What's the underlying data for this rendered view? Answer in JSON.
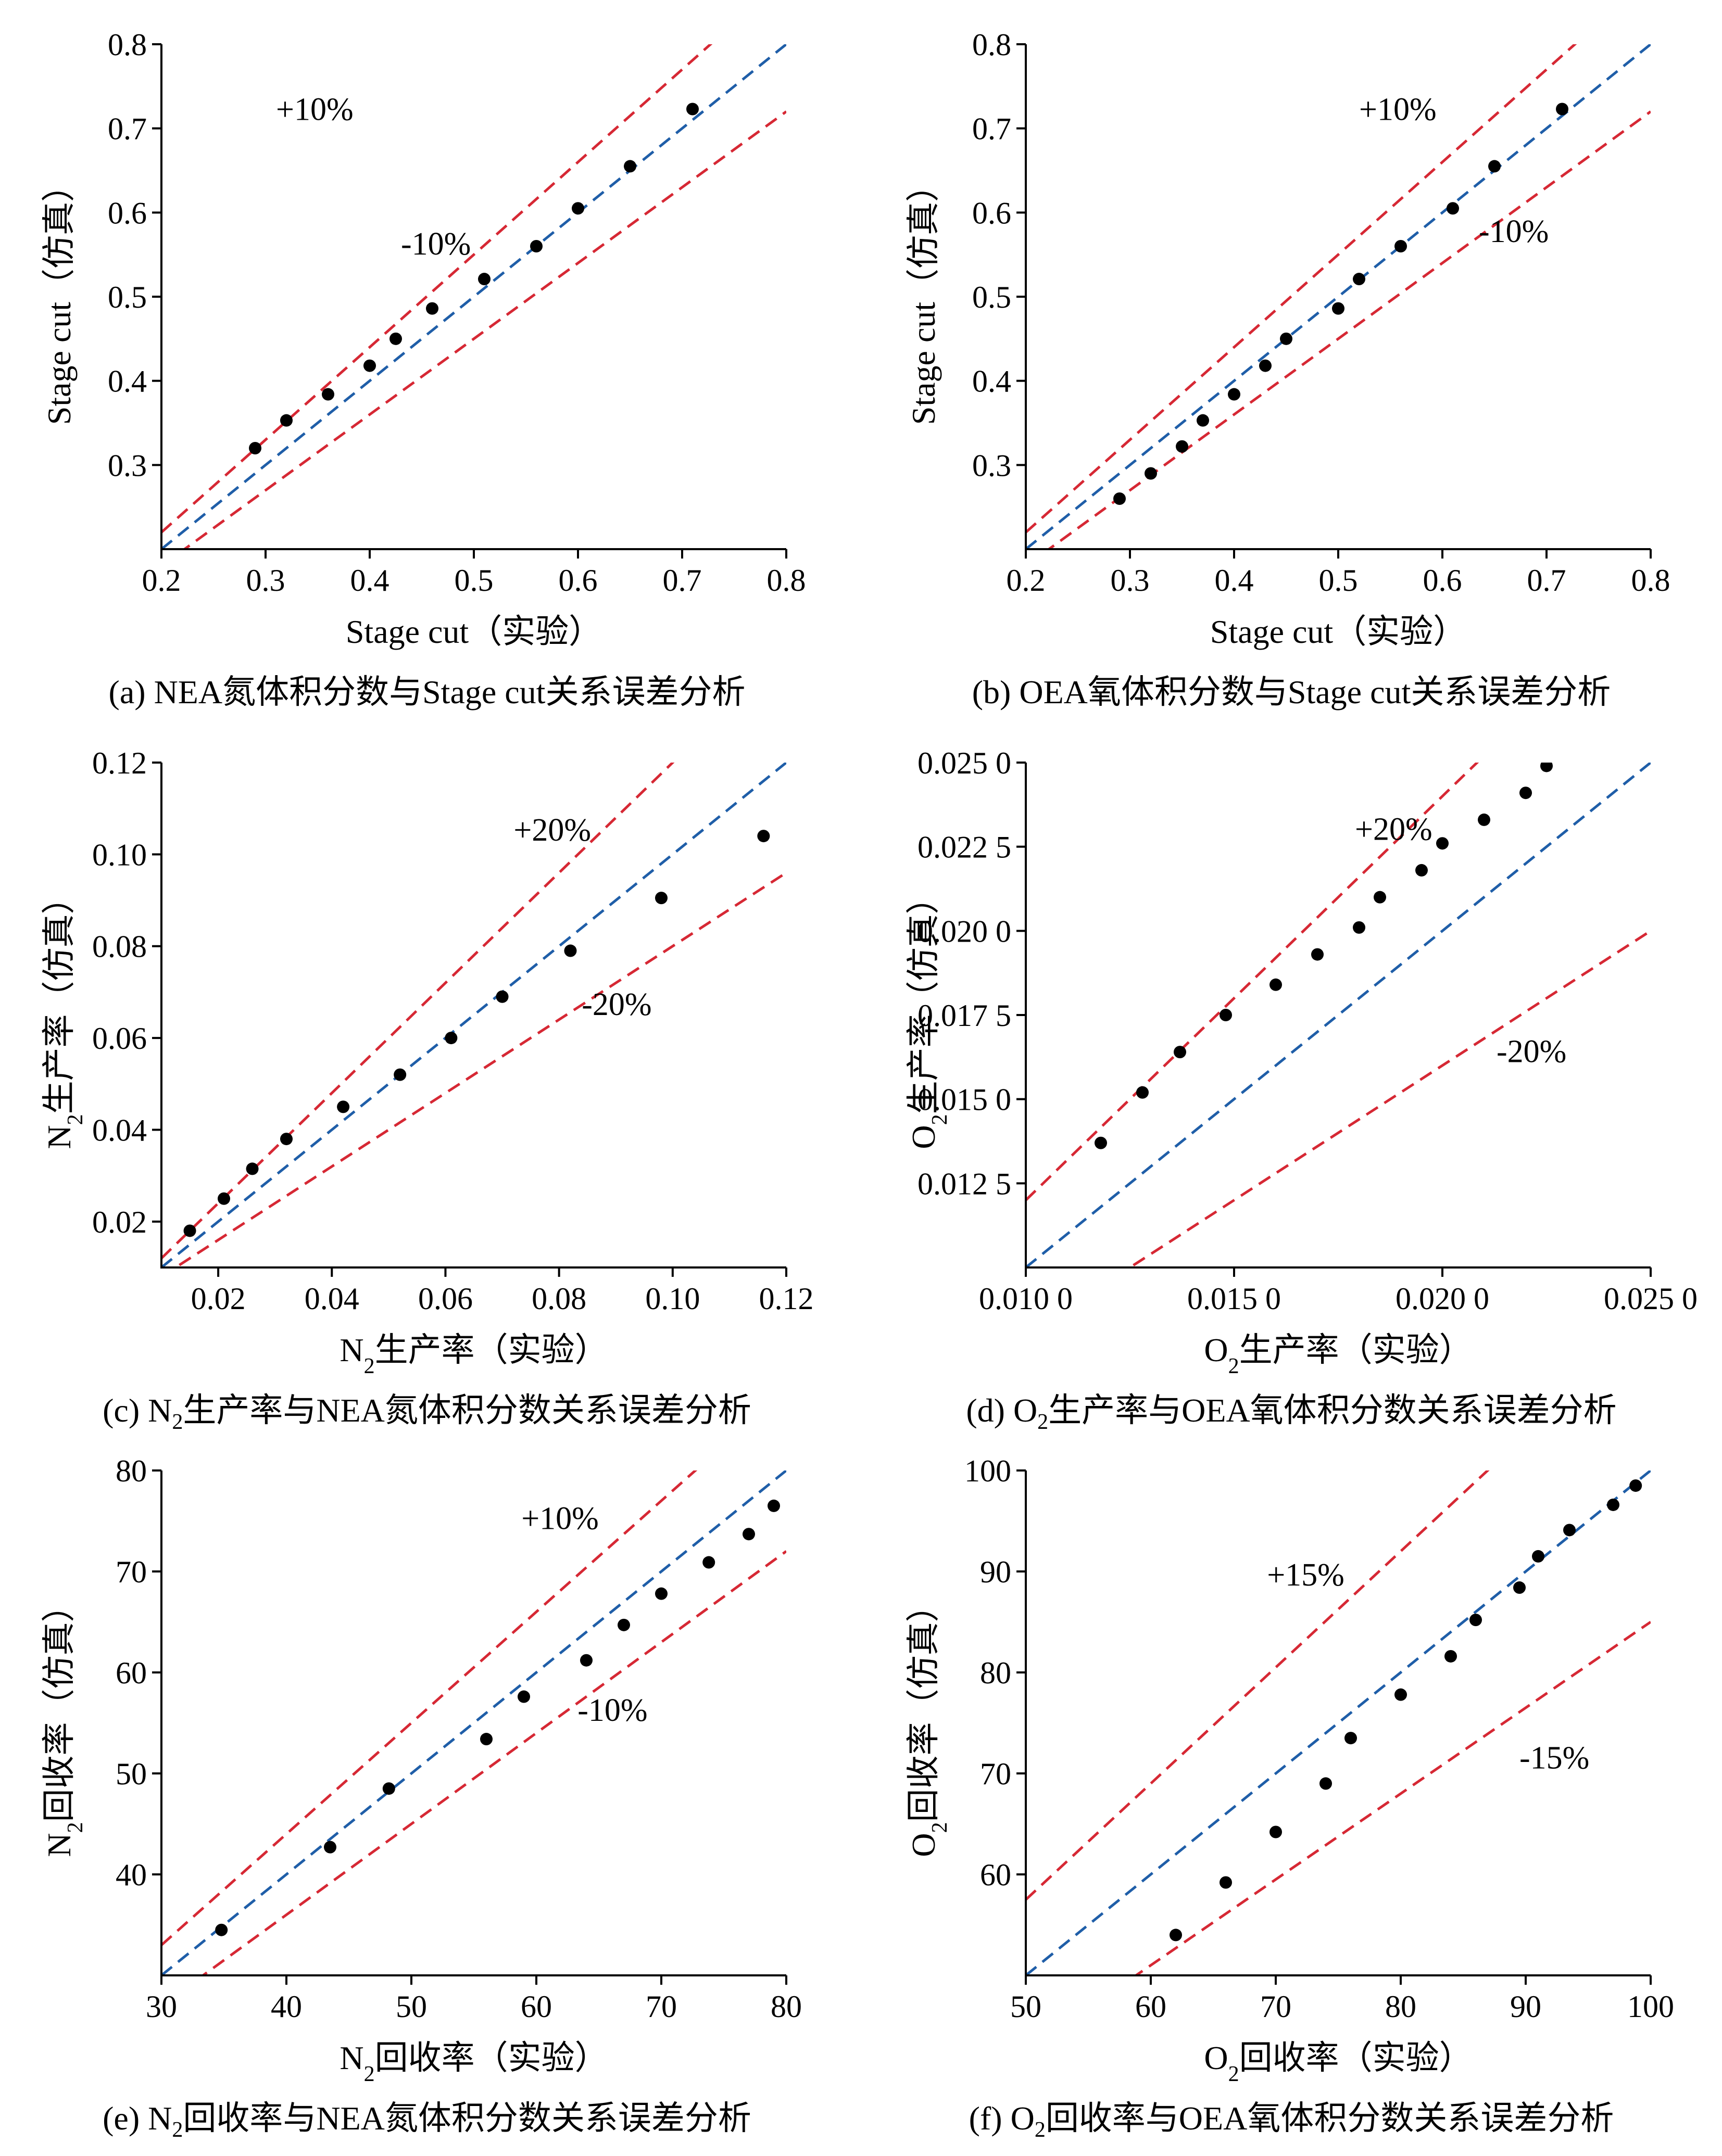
{
  "chart_data": [
    {
      "id": "a",
      "type": "scatter",
      "caption": {
        "pre": "(a) NEA氮体积分数与Stage cut关系误差分析",
        "sub": "",
        "post": ""
      },
      "xlabel": {
        "pre": "Stage cut（实验）",
        "sub": "",
        "post": ""
      },
      "ylabel": {
        "pre": "Stage cut（仿真）",
        "sub": "",
        "post": ""
      },
      "xlim": [
        0.2,
        0.8
      ],
      "ylim": [
        0.2,
        0.8
      ],
      "xticks": [
        0.2,
        0.3,
        0.4,
        0.5,
        0.6,
        0.7,
        0.8
      ],
      "xtick_labels": [
        "0.2",
        "0.3",
        "0.4",
        "0.5",
        "0.6",
        "0.7",
        "0.8"
      ],
      "yticks": [
        0.3,
        0.4,
        0.5,
        0.6,
        0.7,
        0.8
      ],
      "ytick_labels": [
        "0.3",
        "0.4",
        "0.5",
        "0.6",
        "0.7",
        "0.8"
      ],
      "grid": false,
      "band": 0.1,
      "band_labels": [
        {
          "text": "+10%",
          "x": 0.31,
          "y": 0.71
        },
        {
          "text": "-10%",
          "x": 0.43,
          "y": 0.55
        }
      ],
      "series": [
        {
          "x": [
            0.29,
            0.32,
            0.36,
            0.4,
            0.425,
            0.46,
            0.51,
            0.56,
            0.6,
            0.65,
            0.71
          ],
          "y": [
            0.32,
            0.353,
            0.384,
            0.418,
            0.45,
            0.486,
            0.521,
            0.56,
            0.605,
            0.655,
            0.723
          ]
        }
      ]
    },
    {
      "id": "b",
      "type": "scatter",
      "caption": {
        "pre": "(b) OEA氧体积分数与Stage cut关系误差分析",
        "sub": "",
        "post": ""
      },
      "xlabel": {
        "pre": "Stage cut（实验）",
        "sub": "",
        "post": ""
      },
      "ylabel": {
        "pre": "Stage cut（仿真）",
        "sub": "",
        "post": ""
      },
      "xlim": [
        0.2,
        0.8
      ],
      "ylim": [
        0.2,
        0.8
      ],
      "xticks": [
        0.2,
        0.3,
        0.4,
        0.5,
        0.6,
        0.7,
        0.8
      ],
      "xtick_labels": [
        "0.2",
        "0.3",
        "0.4",
        "0.5",
        "0.6",
        "0.7",
        "0.8"
      ],
      "yticks": [
        0.3,
        0.4,
        0.5,
        0.6,
        0.7,
        0.8
      ],
      "ytick_labels": [
        "0.3",
        "0.4",
        "0.5",
        "0.6",
        "0.7",
        "0.8"
      ],
      "grid": false,
      "band": 0.1,
      "band_labels": [
        {
          "text": "+10%",
          "x": 0.52,
          "y": 0.71
        },
        {
          "text": "-10%",
          "x": 0.635,
          "y": 0.565
        }
      ],
      "series": [
        {
          "x": [
            0.29,
            0.32,
            0.35,
            0.37,
            0.4,
            0.43,
            0.45,
            0.5,
            0.52,
            0.56,
            0.61,
            0.65,
            0.715
          ],
          "y": [
            0.26,
            0.29,
            0.322,
            0.353,
            0.384,
            0.418,
            0.45,
            0.486,
            0.521,
            0.56,
            0.605,
            0.655,
            0.723
          ]
        }
      ]
    },
    {
      "id": "c",
      "type": "scatter",
      "caption": {
        "pre": "(c) N",
        "sub": "2",
        "post": "生产率与NEA氮体积分数关系误差分析"
      },
      "xlabel": {
        "pre": "N",
        "sub": "2",
        "post": "生产率（实验）"
      },
      "ylabel": {
        "pre": "N",
        "sub": "2",
        "post": "生产率（仿真）"
      },
      "xlim": [
        0.01,
        0.12
      ],
      "ylim": [
        0.01,
        0.12
      ],
      "xticks": [
        0.02,
        0.04,
        0.06,
        0.08,
        0.1,
        0.12
      ],
      "xtick_labels": [
        "0.02",
        "0.04",
        "0.06",
        "0.08",
        "0.10",
        "0.12"
      ],
      "yticks": [
        0.02,
        0.04,
        0.06,
        0.08,
        0.1,
        0.12
      ],
      "ytick_labels": [
        "0.02",
        "0.04",
        "0.06",
        "0.08",
        "0.10",
        "0.12"
      ],
      "grid": false,
      "band": 0.2,
      "band_labels": [
        {
          "text": "+20%",
          "x": 0.072,
          "y": 0.103
        },
        {
          "text": "-20%",
          "x": 0.084,
          "y": 0.065
        }
      ],
      "series": [
        {
          "x": [
            0.015,
            0.021,
            0.026,
            0.032,
            0.042,
            0.052,
            0.061,
            0.07,
            0.082,
            0.098,
            0.116
          ],
          "y": [
            0.018,
            0.025,
            0.0315,
            0.038,
            0.045,
            0.052,
            0.06,
            0.069,
            0.079,
            0.0905,
            0.104
          ]
        }
      ]
    },
    {
      "id": "d",
      "type": "scatter",
      "caption": {
        "pre": "(d) O",
        "sub": "2",
        "post": "生产率与OEA氧体积分数关系误差分析"
      },
      "xlabel": {
        "pre": "O",
        "sub": "2",
        "post": "生产率（实验）"
      },
      "ylabel": {
        "pre": "O",
        "sub": "2",
        "post": "生产率（仿真）"
      },
      "xlim": [
        0.01,
        0.025
      ],
      "ylim": [
        0.01,
        0.025
      ],
      "xticks": [
        0.01,
        0.015,
        0.02,
        0.025
      ],
      "xtick_labels": [
        "0.010 0",
        "0.015 0",
        "0.020 0",
        "0.025 0"
      ],
      "yticks": [
        0.0125,
        0.015,
        0.0175,
        0.02,
        0.0225,
        0.025
      ],
      "ytick_labels": [
        "0.012 5",
        "0.015 0",
        "0.017 5",
        "0.020 0",
        "0.022 5",
        "0.025 0"
      ],
      "grid": false,
      "band": 0.2,
      "band_labels": [
        {
          "text": "+20%",
          "x": 0.0179,
          "y": 0.0227
        },
        {
          "text": "-20%",
          "x": 0.0213,
          "y": 0.0161
        }
      ],
      "series": [
        {
          "x": [
            0.0118,
            0.0128,
            0.0137,
            0.0148,
            0.016,
            0.017,
            0.018,
            0.0185,
            0.0195,
            0.02,
            0.021,
            0.022,
            0.0225
          ],
          "y": [
            0.0137,
            0.0152,
            0.0164,
            0.0175,
            0.0184,
            0.0193,
            0.0201,
            0.021,
            0.0218,
            0.0226,
            0.0233,
            0.0241,
            0.0249
          ]
        }
      ]
    },
    {
      "id": "e",
      "type": "scatter",
      "caption": {
        "pre": "(e) N",
        "sub": "2",
        "post": "回收率与NEA氮体积分数关系误差分析"
      },
      "xlabel": {
        "pre": "N",
        "sub": "2",
        "post": "回收率（实验）"
      },
      "ylabel": {
        "pre": "N",
        "sub": "2",
        "post": "回收率（仿真）"
      },
      "xlim": [
        30,
        80
      ],
      "ylim": [
        30,
        80
      ],
      "xticks": [
        30,
        40,
        50,
        60,
        70,
        80
      ],
      "xtick_labels": [
        "30",
        "40",
        "50",
        "60",
        "70",
        "80"
      ],
      "yticks": [
        40,
        50,
        60,
        70,
        80
      ],
      "ytick_labels": [
        "40",
        "50",
        "60",
        "70",
        "80"
      ],
      "grid": false,
      "band": 0.1,
      "band_labels": [
        {
          "text": "+10%",
          "x": 58.8,
          "y": 74.2
        },
        {
          "text": "-10%",
          "x": 63.3,
          "y": 55.2
        }
      ],
      "series": [
        {
          "x": [
            34.8,
            43.5,
            48.2,
            56.0,
            59.0,
            64.0,
            67.0,
            70.0,
            73.8,
            77.0,
            79.0
          ],
          "y": [
            34.5,
            42.7,
            48.5,
            53.4,
            57.6,
            61.2,
            64.7,
            67.8,
            70.9,
            73.7,
            76.5
          ]
        }
      ]
    },
    {
      "id": "f",
      "type": "scatter",
      "caption": {
        "pre": "(f) O",
        "sub": "2",
        "post": "回收率与OEA氧体积分数关系误差分析"
      },
      "xlabel": {
        "pre": "O",
        "sub": "2",
        "post": "回收率（实验）"
      },
      "ylabel": {
        "pre": "O",
        "sub": "2",
        "post": "回收率（仿真）"
      },
      "xlim": [
        50,
        100
      ],
      "ylim": [
        50,
        100
      ],
      "xticks": [
        50,
        60,
        70,
        80,
        90,
        100
      ],
      "xtick_labels": [
        "50",
        "60",
        "70",
        "80",
        "90",
        "100"
      ],
      "yticks": [
        60,
        70,
        80,
        90,
        100
      ],
      "ytick_labels": [
        "60",
        "70",
        "80",
        "90",
        "100"
      ],
      "grid": false,
      "band": 0.15,
      "band_labels": [
        {
          "text": "+15%",
          "x": 69.3,
          "y": 88.6
        },
        {
          "text": "-15%",
          "x": 89.5,
          "y": 70.5
        }
      ],
      "series": [
        {
          "x": [
            62.0,
            66.0,
            70.0,
            74.0,
            76.0,
            80.0,
            84.0,
            86.0,
            89.5,
            91.0,
            93.5,
            97.0,
            98.8
          ],
          "y": [
            54.0,
            59.2,
            64.2,
            69.0,
            73.5,
            77.8,
            81.6,
            85.2,
            88.4,
            91.5,
            94.1,
            96.6,
            98.5
          ]
        }
      ]
    }
  ]
}
